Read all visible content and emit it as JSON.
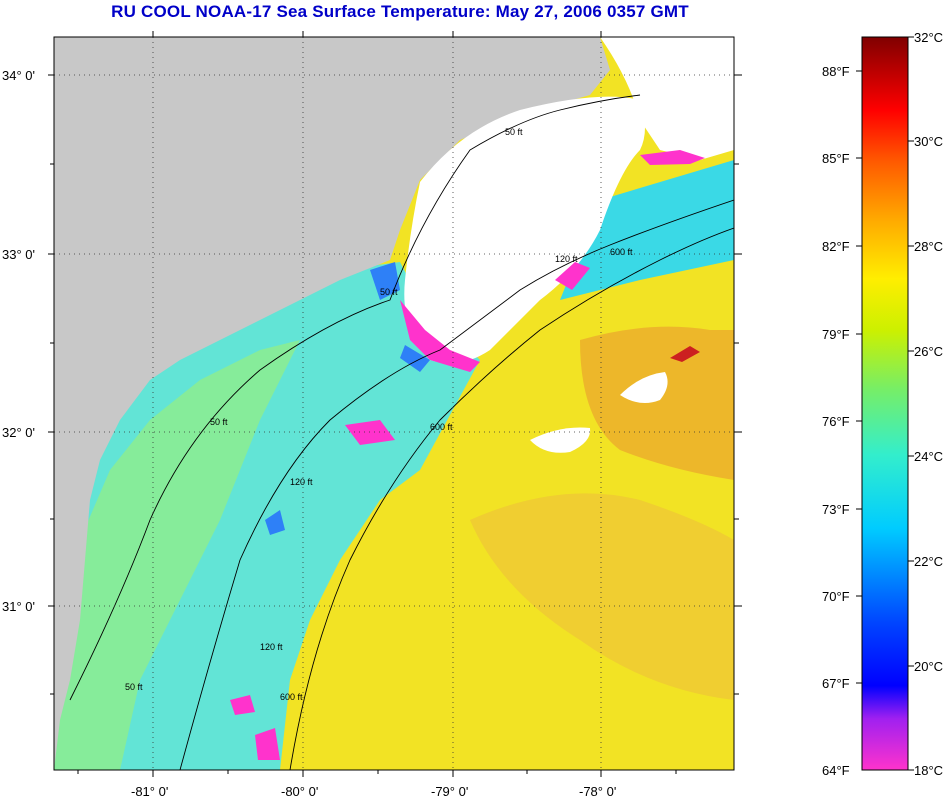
{
  "title": "RU COOL  NOAA-17  Sea Surface Temperature:  May 27, 2006 0357 GMT",
  "map": {
    "lat_labels": [
      "34° 0'",
      "33° 0'",
      "32° 0'",
      "31° 0'"
    ],
    "lon_labels": [
      "-81° 0'",
      "-80° 0'",
      "-79° 0'",
      "-78° 0'"
    ],
    "contour_labels": [
      "50 ft",
      "50 ft",
      "120 ft",
      "600 ft",
      "50 ft",
      "120 ft",
      "600 ft",
      "50 ft",
      "120 ft",
      "600 ft"
    ],
    "colors": {
      "land": "#c8c8c8",
      "cloud": "#ffffff",
      "cool": "#56e2d8",
      "warm": "#f5e21e",
      "hot": "#e8a02a"
    }
  },
  "legend": {
    "celsius": [
      "32°C",
      "30°C",
      "28°C",
      "26°C",
      "24°C",
      "22°C",
      "20°C",
      "18°C"
    ],
    "fahrenheit": [
      "88°F",
      "85°F",
      "82°F",
      "79°F",
      "76°F",
      "73°F",
      "70°F",
      "67°F",
      "64°F"
    ]
  }
}
